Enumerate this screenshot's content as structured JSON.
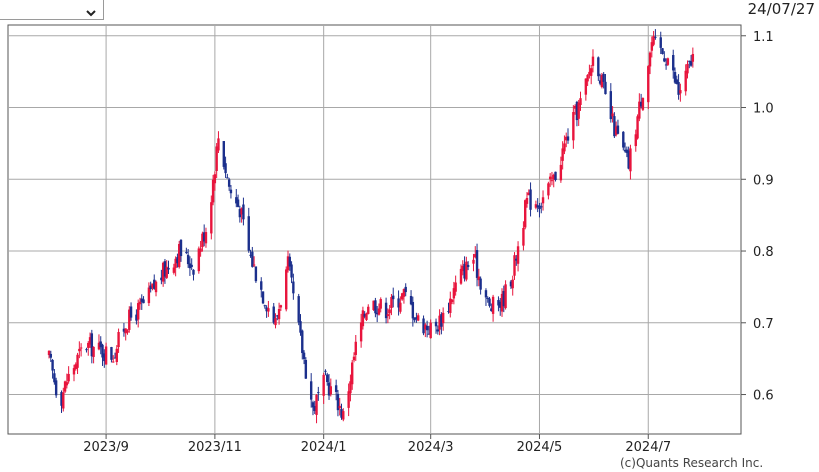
{
  "selector": {
    "value": ""
  },
  "header": {
    "date": "24/07/27"
  },
  "footer": {
    "credit": "(c)Quants Research Inc."
  },
  "colors": {
    "up": "#e8143c",
    "down": "#1b2f8c",
    "grid": "#a8a8a8",
    "axis": "#555555"
  },
  "chart_data": {
    "type": "candlestick",
    "title": "",
    "xlabel": "",
    "ylabel": "",
    "ylim": [
      0.545,
      1.115
    ],
    "y_ticks": [
      "0.6",
      "0.7",
      "0.8",
      "0.9",
      "1.0",
      "1.1"
    ],
    "x_ticks": [
      "2023/9",
      "2023/11",
      "2024/1",
      "2024/3",
      "2024/5",
      "2024/7"
    ],
    "grid": true,
    "x_range": [
      "2023-07-08",
      "2024-08-22"
    ],
    "tick_dates": [
      "2023-09-01",
      "2023-11-01",
      "2024-01-01",
      "2024-03-01",
      "2024-05-01",
      "2024-07-01"
    ],
    "anchors": [
      [
        "2023-07-31",
        0.65
      ],
      [
        "2023-08-06",
        0.59
      ],
      [
        "2023-08-10",
        0.62
      ],
      [
        "2023-08-20",
        0.67
      ],
      [
        "2023-09-05",
        0.655
      ],
      [
        "2023-09-12",
        0.7
      ],
      [
        "2023-09-22",
        0.725
      ],
      [
        "2023-10-03",
        0.77
      ],
      [
        "2023-10-12",
        0.8
      ],
      [
        "2023-10-20",
        0.78
      ],
      [
        "2023-10-28",
        0.84
      ],
      [
        "2023-11-03",
        0.96
      ],
      [
        "2023-11-10",
        0.88
      ],
      [
        "2023-11-15",
        0.86
      ],
      [
        "2023-11-20",
        0.8
      ],
      [
        "2023-11-28",
        0.74
      ],
      [
        "2023-12-05",
        0.7
      ],
      [
        "2023-12-12",
        0.78
      ],
      [
        "2023-12-18",
        0.69
      ],
      [
        "2023-12-26",
        0.58
      ],
      [
        "2024-01-02",
        0.62
      ],
      [
        "2024-01-09",
        0.59
      ],
      [
        "2024-01-12",
        0.57
      ],
      [
        "2024-01-20",
        0.68
      ],
      [
        "2024-01-26",
        0.73
      ],
      [
        "2024-02-05",
        0.72
      ],
      [
        "2024-02-15",
        0.74
      ],
      [
        "2024-02-24",
        0.7
      ],
      [
        "2024-03-03",
        0.69
      ],
      [
        "2024-03-10",
        0.72
      ],
      [
        "2024-03-17",
        0.765
      ],
      [
        "2024-03-25",
        0.79
      ],
      [
        "2024-04-03",
        0.72
      ],
      [
        "2024-04-10",
        0.73
      ],
      [
        "2024-04-16",
        0.77
      ],
      [
        "2024-04-24",
        0.87
      ],
      [
        "2024-05-02",
        0.87
      ],
      [
        "2024-05-09",
        0.9
      ],
      [
        "2024-05-18",
        0.97
      ],
      [
        "2024-05-26",
        1.02
      ],
      [
        "2024-06-01",
        1.08
      ],
      [
        "2024-06-08",
        1.0
      ],
      [
        "2024-06-15",
        0.95
      ],
      [
        "2024-06-20",
        0.92
      ],
      [
        "2024-06-26",
        1.0
      ],
      [
        "2024-07-03",
        1.09
      ],
      [
        "2024-07-12",
        1.07
      ],
      [
        "2024-07-18",
        1.02
      ],
      [
        "2024-07-26",
        1.07
      ]
    ]
  }
}
